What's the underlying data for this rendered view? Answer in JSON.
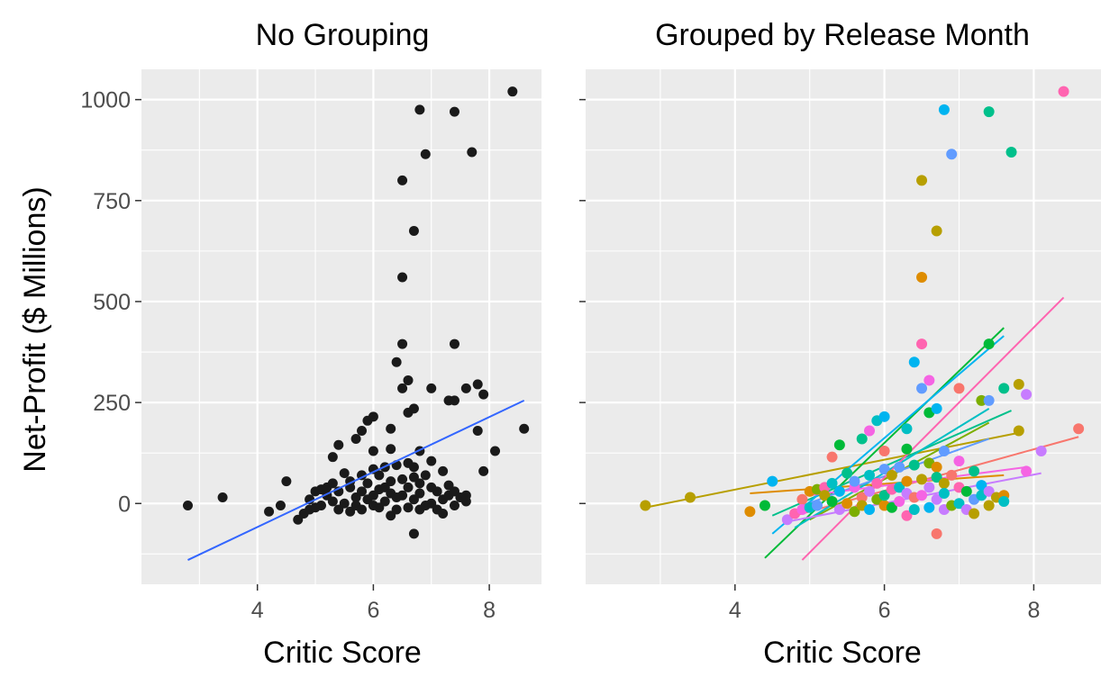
{
  "y_axis_title": "Net-Profit ($ Millions)",
  "colors": {
    "panel_background": "#ebebeb",
    "point_left": "#1a1a1a",
    "fit_left": "#3366ff",
    "month_palette": [
      "#f8766d",
      "#de8c00",
      "#b79f00",
      "#7cae00",
      "#00ba38",
      "#00c08b",
      "#00bfc4",
      "#00b4f0",
      "#619cff",
      "#c77cff",
      "#f564e3",
      "#ff64b0"
    ]
  },
  "chart_data": [
    {
      "type": "scatter",
      "title": "No Grouping",
      "xlabel": "Critic Score",
      "ylabel": "Net-Profit ($ Millions)",
      "xlim": [
        2.0,
        8.9
      ],
      "ylim": [
        -200,
        1075
      ],
      "x_ticks": [
        4,
        6,
        8
      ],
      "y_ticks": [
        0,
        250,
        500,
        750,
        1000
      ],
      "grid": true,
      "points": [
        [
          2.8,
          -5
        ],
        [
          3.4,
          15
        ],
        [
          4.2,
          -20
        ],
        [
          4.4,
          -5
        ],
        [
          4.5,
          55
        ],
        [
          4.7,
          -40
        ],
        [
          4.8,
          -25
        ],
        [
          4.9,
          10
        ],
        [
          4.9,
          -15
        ],
        [
          5.0,
          30
        ],
        [
          5.0,
          -10
        ],
        [
          5.1,
          35
        ],
        [
          5.1,
          -5
        ],
        [
          5.2,
          40
        ],
        [
          5.2,
          20
        ],
        [
          5.3,
          115
        ],
        [
          5.3,
          5
        ],
        [
          5.3,
          50
        ],
        [
          5.4,
          145
        ],
        [
          5.4,
          -15
        ],
        [
          5.4,
          30
        ],
        [
          5.5,
          75
        ],
        [
          5.5,
          0
        ],
        [
          5.6,
          40
        ],
        [
          5.6,
          -20
        ],
        [
          5.6,
          55
        ],
        [
          5.7,
          160
        ],
        [
          5.7,
          15
        ],
        [
          5.7,
          -5
        ],
        [
          5.8,
          180
        ],
        [
          5.8,
          70
        ],
        [
          5.8,
          30
        ],
        [
          5.8,
          -15
        ],
        [
          5.9,
          205
        ],
        [
          5.9,
          50
        ],
        [
          5.9,
          10
        ],
        [
          6.0,
          215
        ],
        [
          6.0,
          -5
        ],
        [
          6.0,
          85
        ],
        [
          6.0,
          130
        ],
        [
          6.0,
          20
        ],
        [
          6.1,
          35
        ],
        [
          6.1,
          -10
        ],
        [
          6.1,
          70
        ],
        [
          6.2,
          90
        ],
        [
          6.2,
          5
        ],
        [
          6.2,
          40
        ],
        [
          6.3,
          185
        ],
        [
          6.3,
          135
        ],
        [
          6.3,
          -30
        ],
        [
          6.3,
          25
        ],
        [
          6.3,
          55
        ],
        [
          6.4,
          350
        ],
        [
          6.4,
          95
        ],
        [
          6.4,
          15
        ],
        [
          6.4,
          -15
        ],
        [
          6.5,
          395
        ],
        [
          6.5,
          285
        ],
        [
          6.5,
          560
        ],
        [
          6.5,
          800
        ],
        [
          6.5,
          60
        ],
        [
          6.5,
          20
        ],
        [
          6.6,
          305
        ],
        [
          6.6,
          225
        ],
        [
          6.6,
          100
        ],
        [
          6.6,
          -10
        ],
        [
          6.6,
          40
        ],
        [
          6.7,
          675
        ],
        [
          6.7,
          235
        ],
        [
          6.7,
          90
        ],
        [
          6.7,
          65
        ],
        [
          6.7,
          -75
        ],
        [
          6.7,
          10
        ],
        [
          6.8,
          975
        ],
        [
          6.8,
          130
        ],
        [
          6.8,
          50
        ],
        [
          6.8,
          25
        ],
        [
          6.8,
          -15
        ],
        [
          6.9,
          865
        ],
        [
          6.9,
          70
        ],
        [
          6.9,
          -5
        ],
        [
          7.0,
          285
        ],
        [
          7.0,
          105
        ],
        [
          7.0,
          40
        ],
        [
          7.0,
          0
        ],
        [
          7.1,
          30
        ],
        [
          7.1,
          -15
        ],
        [
          7.2,
          80
        ],
        [
          7.2,
          10
        ],
        [
          7.2,
          -25
        ],
        [
          7.3,
          255
        ],
        [
          7.3,
          45
        ],
        [
          7.3,
          20
        ],
        [
          7.4,
          970
        ],
        [
          7.4,
          395
        ],
        [
          7.4,
          255
        ],
        [
          7.4,
          30
        ],
        [
          7.4,
          -5
        ],
        [
          7.5,
          15
        ],
        [
          7.6,
          285
        ],
        [
          7.6,
          20
        ],
        [
          7.6,
          5
        ],
        [
          7.7,
          870
        ],
        [
          7.8,
          295
        ],
        [
          7.8,
          180
        ],
        [
          7.9,
          270
        ],
        [
          7.9,
          80
        ],
        [
          8.1,
          130
        ],
        [
          8.4,
          1020
        ],
        [
          8.6,
          185
        ]
      ],
      "fit_line": {
        "x": [
          2.8,
          8.6
        ],
        "y": [
          -140,
          255
        ]
      }
    },
    {
      "type": "scatter",
      "title": "Grouped by Release Month",
      "xlabel": "Critic Score",
      "xlim": [
        2.0,
        8.9
      ],
      "ylim": [
        -200,
        1075
      ],
      "x_ticks": [
        4,
        6,
        8
      ],
      "y_ticks": [
        0,
        250,
        500,
        750,
        1000
      ],
      "grid": true,
      "y_tick_labels_shown": false,
      "group_key": "release month (12 colours, no legend shown)",
      "points": [
        [
          2.8,
          -5,
          2
        ],
        [
          3.4,
          15,
          2
        ],
        [
          4.2,
          -20,
          1
        ],
        [
          4.4,
          -5,
          4
        ],
        [
          4.5,
          55,
          7
        ],
        [
          4.7,
          -40,
          9
        ],
        [
          4.8,
          -25,
          11
        ],
        [
          4.9,
          10,
          0
        ],
        [
          4.9,
          -15,
          10
        ],
        [
          5.0,
          30,
          1
        ],
        [
          5.0,
          -10,
          6
        ],
        [
          5.1,
          35,
          3
        ],
        [
          5.1,
          -5,
          8
        ],
        [
          5.2,
          40,
          11
        ],
        [
          5.2,
          20,
          2
        ],
        [
          5.3,
          115,
          0
        ],
        [
          5.3,
          5,
          4
        ],
        [
          5.3,
          50,
          6
        ],
        [
          5.4,
          145,
          4
        ],
        [
          5.4,
          -15,
          9
        ],
        [
          5.4,
          30,
          7
        ],
        [
          5.5,
          75,
          5
        ],
        [
          5.5,
          0,
          1
        ],
        [
          5.6,
          40,
          10
        ],
        [
          5.6,
          -20,
          3
        ],
        [
          5.6,
          55,
          8
        ],
        [
          5.7,
          160,
          5
        ],
        [
          5.7,
          15,
          0
        ],
        [
          5.7,
          -5,
          2
        ],
        [
          5.8,
          180,
          10
        ],
        [
          5.8,
          70,
          6
        ],
        [
          5.8,
          30,
          9
        ],
        [
          5.8,
          -15,
          7
        ],
        [
          5.9,
          205,
          6
        ],
        [
          5.9,
          50,
          11
        ],
        [
          5.9,
          10,
          3
        ],
        [
          6.0,
          215,
          7
        ],
        [
          6.0,
          -5,
          1
        ],
        [
          6.0,
          85,
          8
        ],
        [
          6.0,
          130,
          0
        ],
        [
          6.0,
          20,
          5
        ],
        [
          6.1,
          35,
          11
        ],
        [
          6.1,
          -10,
          4
        ],
        [
          6.1,
          70,
          2
        ],
        [
          6.2,
          90,
          8
        ],
        [
          6.2,
          5,
          10
        ],
        [
          6.2,
          40,
          6
        ],
        [
          6.3,
          185,
          6
        ],
        [
          6.3,
          135,
          4
        ],
        [
          6.3,
          -30,
          11
        ],
        [
          6.3,
          25,
          9
        ],
        [
          6.3,
          55,
          1
        ],
        [
          6.4,
          350,
          7
        ],
        [
          6.4,
          95,
          5
        ],
        [
          6.4,
          15,
          0
        ],
        [
          6.4,
          -15,
          6
        ],
        [
          6.5,
          395,
          11
        ],
        [
          6.5,
          285,
          8
        ],
        [
          6.5,
          560,
          1
        ],
        [
          6.5,
          800,
          2
        ],
        [
          6.5,
          60,
          2
        ],
        [
          6.5,
          20,
          10
        ],
        [
          6.6,
          305,
          10
        ],
        [
          6.6,
          225,
          4
        ],
        [
          6.6,
          100,
          3
        ],
        [
          6.6,
          -10,
          7
        ],
        [
          6.6,
          40,
          9
        ],
        [
          6.7,
          675,
          2
        ],
        [
          6.7,
          235,
          7
        ],
        [
          6.7,
          90,
          1
        ],
        [
          6.7,
          65,
          5
        ],
        [
          6.7,
          -75,
          0
        ],
        [
          6.7,
          10,
          9
        ],
        [
          6.8,
          975,
          7
        ],
        [
          6.8,
          130,
          8
        ],
        [
          6.8,
          50,
          2
        ],
        [
          6.8,
          25,
          6
        ],
        [
          6.8,
          -15,
          9
        ],
        [
          6.9,
          865,
          8
        ],
        [
          6.9,
          70,
          0
        ],
        [
          6.9,
          -5,
          3
        ],
        [
          7.0,
          285,
          0
        ],
        [
          7.0,
          105,
          10
        ],
        [
          7.0,
          40,
          11
        ],
        [
          7.0,
          0,
          6
        ],
        [
          7.1,
          30,
          4
        ],
        [
          7.1,
          -15,
          9
        ],
        [
          7.2,
          80,
          5
        ],
        [
          7.2,
          10,
          8
        ],
        [
          7.2,
          -25,
          2
        ],
        [
          7.3,
          255,
          3
        ],
        [
          7.3,
          45,
          7
        ],
        [
          7.3,
          20,
          6
        ],
        [
          7.4,
          970,
          5
        ],
        [
          7.4,
          395,
          4
        ],
        [
          7.4,
          255,
          8
        ],
        [
          7.4,
          30,
          9
        ],
        [
          7.4,
          -5,
          2
        ],
        [
          7.5,
          15,
          2
        ],
        [
          7.6,
          285,
          5
        ],
        [
          7.6,
          20,
          1
        ],
        [
          7.6,
          5,
          6
        ],
        [
          7.7,
          870,
          5
        ],
        [
          7.8,
          295,
          2
        ],
        [
          7.8,
          180,
          2
        ],
        [
          7.9,
          270,
          9
        ],
        [
          7.9,
          80,
          10
        ],
        [
          8.1,
          130,
          9
        ],
        [
          8.4,
          1020,
          11
        ],
        [
          8.6,
          185,
          0
        ]
      ],
      "fit_lines": [
        {
          "group": 0,
          "x": [
            4.8,
            8.6
          ],
          "y": [
            -30,
            165
          ]
        },
        {
          "group": 1,
          "x": [
            4.2,
            7.6
          ],
          "y": [
            25,
            70
          ]
        },
        {
          "group": 2,
          "x": [
            2.8,
            7.8
          ],
          "y": [
            -10,
            175
          ]
        },
        {
          "group": 3,
          "x": [
            5.0,
            7.4
          ],
          "y": [
            -40,
            200
          ]
        },
        {
          "group": 4,
          "x": [
            4.4,
            7.6
          ],
          "y": [
            -135,
            435
          ]
        },
        {
          "group": 5,
          "x": [
            4.5,
            7.7
          ],
          "y": [
            -30,
            230
          ]
        },
        {
          "group": 6,
          "x": [
            4.8,
            7.4
          ],
          "y": [
            -60,
            235
          ]
        },
        {
          "group": 7,
          "x": [
            4.5,
            7.6
          ],
          "y": [
            -75,
            415
          ]
        },
        {
          "group": 8,
          "x": [
            4.9,
            7.4
          ],
          "y": [
            -5,
            160
          ]
        },
        {
          "group": 9,
          "x": [
            4.7,
            8.1
          ],
          "y": [
            -45,
            75
          ]
        },
        {
          "group": 10,
          "x": [
            5.0,
            7.9
          ],
          "y": [
            20,
            90
          ]
        },
        {
          "group": 11,
          "x": [
            4.9,
            8.4
          ],
          "y": [
            -140,
            510
          ]
        }
      ]
    }
  ]
}
